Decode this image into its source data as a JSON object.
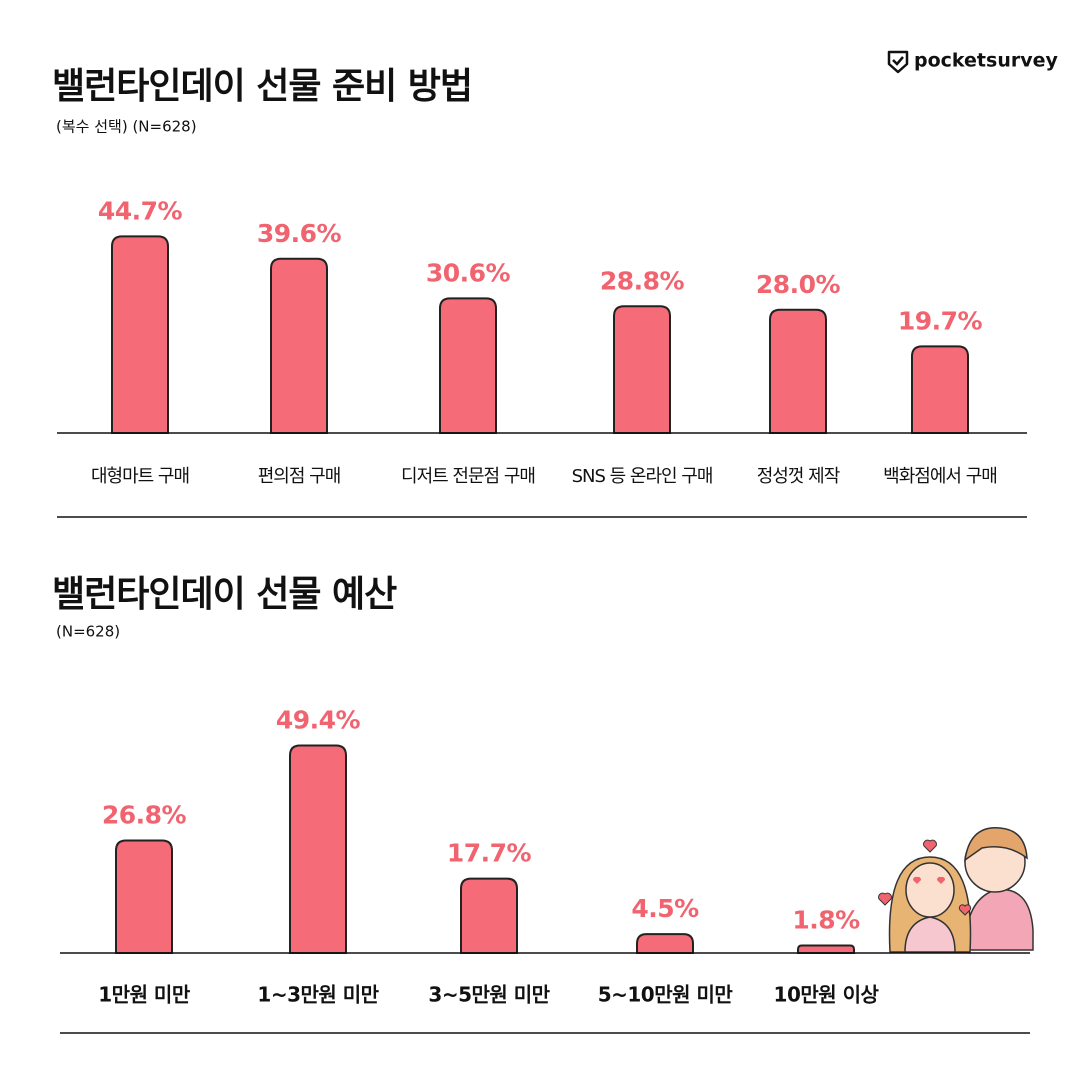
{
  "brand": "pocketsurvey",
  "chart_data": [
    {
      "type": "bar",
      "title": "밸런타인데이 선물 준비 방법",
      "subtitle": "(복수 선택) (N=628)",
      "categories": [
        "대형마트 구매",
        "편의점 구매",
        "디저트 전문점 구매",
        "SNS 등 온라인 구매",
        "정성껏 제작",
        "백화점에서 구매"
      ],
      "values": [
        44.7,
        39.6,
        30.6,
        28.8,
        28.0,
        19.7
      ],
      "value_labels": [
        "44.7%",
        "39.6%",
        "30.6%",
        "28.8%",
        "28.0%",
        "19.7%"
      ],
      "color": "#f56b78"
    },
    {
      "type": "bar",
      "title": "밸런타인데이 선물 예산",
      "subtitle": "(N=628)",
      "categories": [
        "1만원 미만",
        "1~3만원 미만",
        "3~5만원 미만",
        "5~10만원 미만",
        "10만원 이상"
      ],
      "values": [
        26.8,
        49.4,
        17.7,
        4.5,
        1.8
      ],
      "value_labels": [
        "26.8%",
        "49.4%",
        "17.7%",
        "4.5%",
        "1.8%"
      ],
      "color": "#f56b78"
    }
  ]
}
